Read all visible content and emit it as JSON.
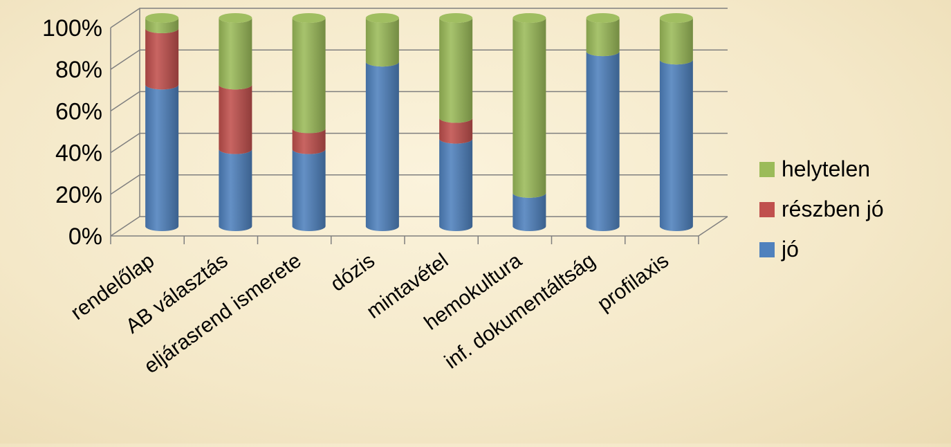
{
  "chart_data": {
    "type": "bar",
    "stacked": true,
    "percent_stacked": true,
    "three_d": true,
    "categories": [
      "rendelőlap",
      "AB választás",
      "eljárasrend ismerete",
      "dózis",
      "mintavétel",
      "hemokultura",
      "inf. dokumentáltság",
      "profilaxis"
    ],
    "series": [
      {
        "name": "jó",
        "color": "#4f81bd",
        "values": [
          68,
          37,
          37,
          79,
          42,
          16,
          84,
          80
        ]
      },
      {
        "name": "részben jó",
        "color": "#c0504d",
        "values": [
          27,
          31,
          10,
          0,
          10,
          0,
          0,
          0
        ]
      },
      {
        "name": "helytelen",
        "color": "#9bbb59",
        "values": [
          5,
          32,
          53,
          21,
          48,
          84,
          16,
          20
        ]
      }
    ],
    "y_ticks": [
      "0%",
      "20%",
      "40%",
      "60%",
      "80%",
      "100%"
    ],
    "ylim": [
      0,
      100
    ],
    "grid": true,
    "legend_position": "right"
  }
}
